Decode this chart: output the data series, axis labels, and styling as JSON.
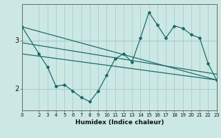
{
  "xlabel": "Humidex (Indice chaleur)",
  "bg_color": "#cce8e4",
  "grid_color": "#aaccca",
  "line_color": "#1a6b6b",
  "x_min": 0,
  "x_max": 23,
  "y_min": 1.55,
  "y_max": 3.75,
  "yticks": [
    2,
    3
  ],
  "xticks": [
    0,
    2,
    3,
    4,
    5,
    6,
    7,
    8,
    9,
    10,
    11,
    12,
    13,
    14,
    15,
    16,
    17,
    18,
    19,
    20,
    21,
    22,
    23
  ],
  "data_x": [
    0,
    2,
    3,
    4,
    5,
    6,
    7,
    8,
    9,
    10,
    11,
    12,
    13,
    14,
    15,
    16,
    17,
    18,
    19,
    20,
    21,
    22,
    23
  ],
  "data_y": [
    3.28,
    2.72,
    2.45,
    2.05,
    2.08,
    1.95,
    1.82,
    1.73,
    1.95,
    2.28,
    2.62,
    2.72,
    2.55,
    3.05,
    3.58,
    3.32,
    3.05,
    3.3,
    3.25,
    3.12,
    3.05,
    2.52,
    2.18
  ],
  "trend1_x": [
    0,
    23
  ],
  "trend1_y": [
    3.28,
    2.18
  ],
  "trend2_x": [
    0,
    23
  ],
  "trend2_y": [
    2.95,
    2.3
  ],
  "trend3_x": [
    0,
    23
  ],
  "trend3_y": [
    2.72,
    2.18
  ]
}
